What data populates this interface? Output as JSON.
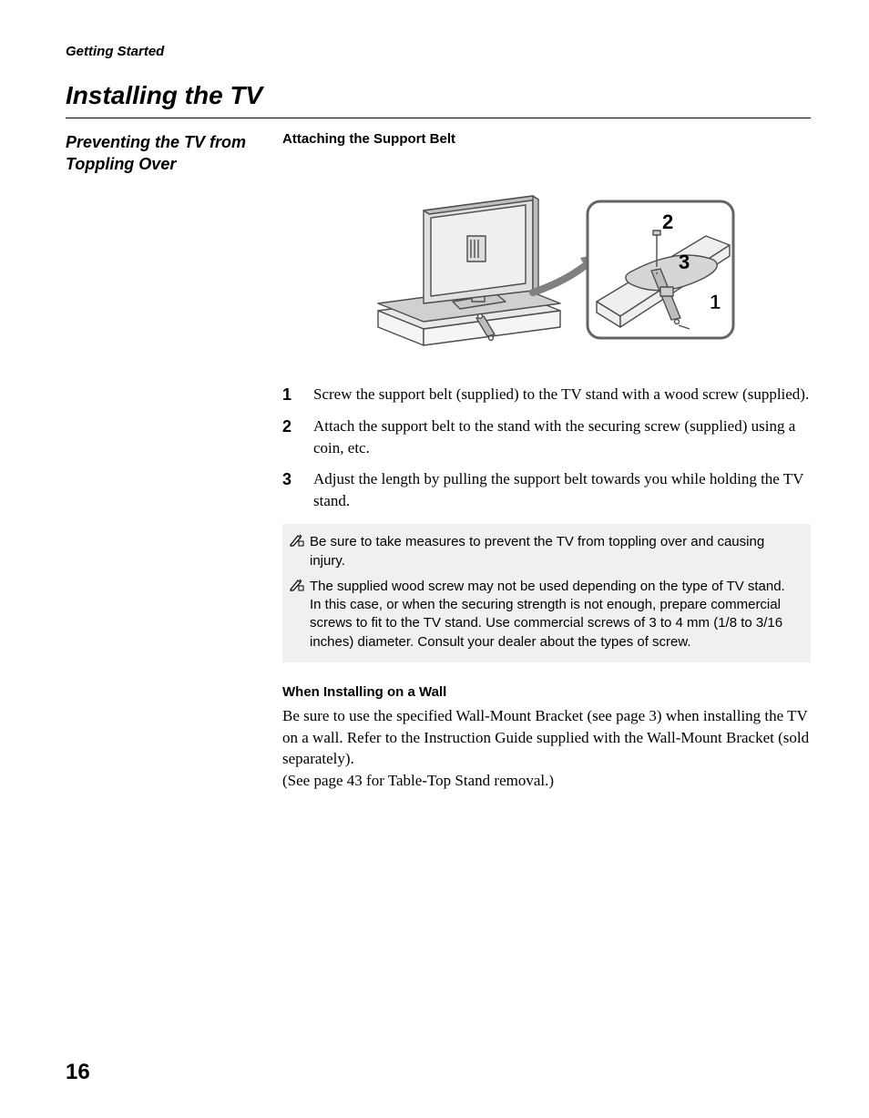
{
  "breadcrumb": "Getting Started",
  "title": "Installing the TV",
  "subsection": "Preventing the TV from Toppling Over",
  "rightHeading": "Attaching the Support Belt",
  "diagram": {
    "labels": {
      "one": "1",
      "two": "2",
      "three": "3"
    },
    "colors": {
      "stroke": "#4d4d4d",
      "light": "#d9d9d9",
      "panel": "#f5f5f5",
      "mid": "#b8b8b8",
      "shadow": "#999999"
    }
  },
  "steps": [
    {
      "num": "1",
      "text": "Screw the support belt (supplied) to the TV stand with a wood screw (supplied)."
    },
    {
      "num": "2",
      "text": "Attach the support belt to the stand with the securing screw (supplied) using a coin, etc."
    },
    {
      "num": "3",
      "text": "Adjust the length by pulling the support belt towards you while holding the TV stand."
    }
  ],
  "notes": [
    "Be sure to take measures to prevent the TV from toppling over and causing injury.",
    "The supplied wood screw may not be used depending on the type of TV stand. In this case, or when the securing strength is not enough, prepare commercial screws to fit to the TV stand. Use commercial screws of 3 to 4 mm (1/8 to 3/16 inches) diameter. Consult your dealer about the types of screw."
  ],
  "wallHeading": "When Installing on a Wall",
  "wallBody": "Be sure to use the specified Wall-Mount Bracket (see page 3) when installing the TV on a wall. Refer to the Instruction Guide supplied with the Wall-Mount Bracket (sold separately).\n(See page 43 for Table-Top Stand removal.)",
  "pageNumber": "16"
}
